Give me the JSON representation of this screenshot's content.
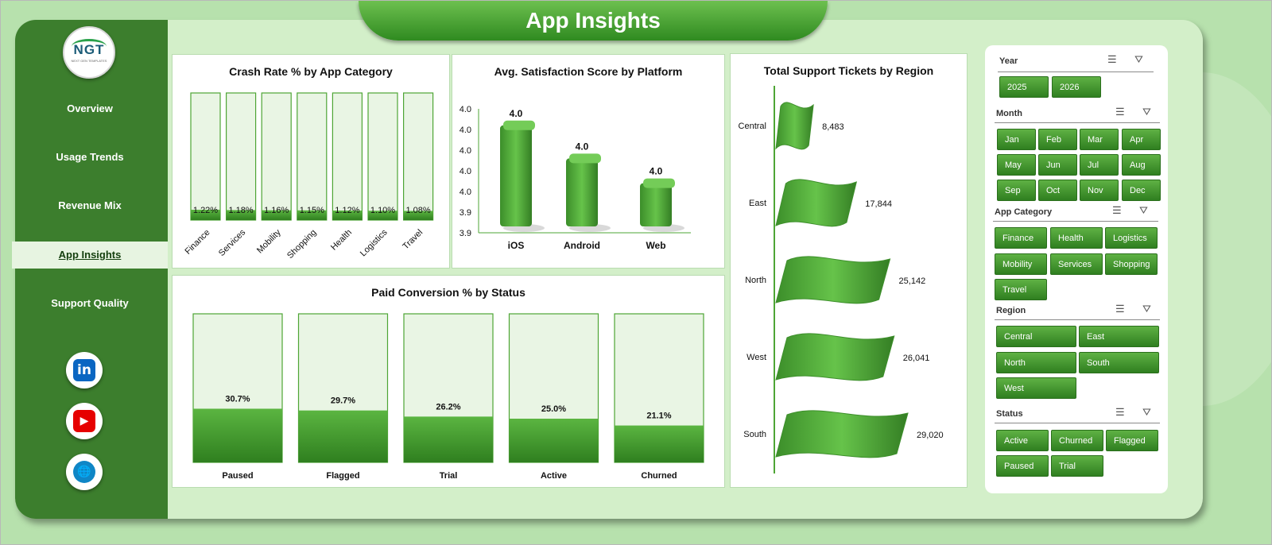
{
  "header": {
    "title": "App Insights"
  },
  "logo": {
    "text": "NGT",
    "subtext": "NEXT GEN TEMPLATES"
  },
  "nav": [
    {
      "label": "Overview",
      "active": false
    },
    {
      "label": "Usage Trends",
      "active": false
    },
    {
      "label": "Revenue Mix",
      "active": false
    },
    {
      "label": "App Insights",
      "active": true
    },
    {
      "label": "Support Quality",
      "active": false
    }
  ],
  "social": [
    {
      "icon": "linkedin-icon",
      "glyph": "in",
      "color": "#0a66c2"
    },
    {
      "icon": "youtube-icon",
      "glyph": "▶",
      "color": "#e60000"
    },
    {
      "icon": "globe-icon",
      "glyph": "🌐",
      "color": "#0f86c6"
    }
  ],
  "colors": {
    "accent": "#3c7e2d",
    "bar": "#4ea535",
    "bg": "#b7e1ad"
  },
  "chart_data": [
    {
      "id": "crash",
      "type": "bar",
      "title": "Crash Rate % by App Category",
      "categories": [
        "Finance",
        "Services",
        "Mobility",
        "Shopping",
        "Health",
        "Logistics",
        "Travel"
      ],
      "values": [
        1.22,
        1.18,
        1.16,
        1.15,
        1.12,
        1.1,
        1.08
      ],
      "labels": [
        "1.22%",
        "1.18%",
        "1.16%",
        "1.15%",
        "1.12%",
        "1.10%",
        "1.08%"
      ]
    },
    {
      "id": "satisfaction",
      "type": "bar",
      "title": "Avg. Satisfaction Score by Platform",
      "categories": [
        "iOS",
        "Android",
        "Web"
      ],
      "values": [
        4.03,
        3.99,
        3.96
      ],
      "labels": [
        "4.0",
        "4.0",
        "4.0"
      ],
      "yticks": [
        "4.0",
        "4.0",
        "4.0",
        "4.0",
        "4.0",
        "3.9",
        "3.9"
      ],
      "ylim": [
        3.9,
        4.05
      ]
    },
    {
      "id": "conversion",
      "type": "bar",
      "title": "Paid Conversion  % by Status",
      "categories": [
        "Paused",
        "Flagged",
        "Trial",
        "Active",
        "Churned"
      ],
      "values": [
        30.7,
        29.7,
        26.2,
        25.0,
        21.1
      ],
      "labels": [
        "30.7%",
        "29.7%",
        "26.2%",
        "25.0%",
        "21.1%"
      ]
    },
    {
      "id": "tickets",
      "type": "bar",
      "title": "Total Support Tickets by Region",
      "categories": [
        "Central",
        "East",
        "North",
        "West",
        "South"
      ],
      "values": [
        8483,
        17844,
        25142,
        26041,
        29020
      ],
      "labels": [
        "8,483",
        "17,844",
        "25,142",
        "26,041",
        "29,020"
      ]
    }
  ],
  "slicers": [
    {
      "label": "Year",
      "items": [
        "2025",
        "2026"
      ]
    },
    {
      "label": "Month",
      "items": [
        "Jan",
        "Feb",
        "Mar",
        "Apr",
        "May",
        "Jun",
        "Jul",
        "Aug",
        "Sep",
        "Oct",
        "Nov",
        "Dec"
      ]
    },
    {
      "label": "App Category",
      "items": [
        "Finance",
        "Health",
        "Logistics",
        "Mobility",
        "Services",
        "Shopping",
        "Travel"
      ]
    },
    {
      "label": "Region",
      "items": [
        "Central",
        "East",
        "North",
        "South",
        "West"
      ]
    },
    {
      "label": "Status",
      "items": [
        "Active",
        "Churned",
        "Flagged",
        "Paused",
        "Trial"
      ]
    }
  ]
}
